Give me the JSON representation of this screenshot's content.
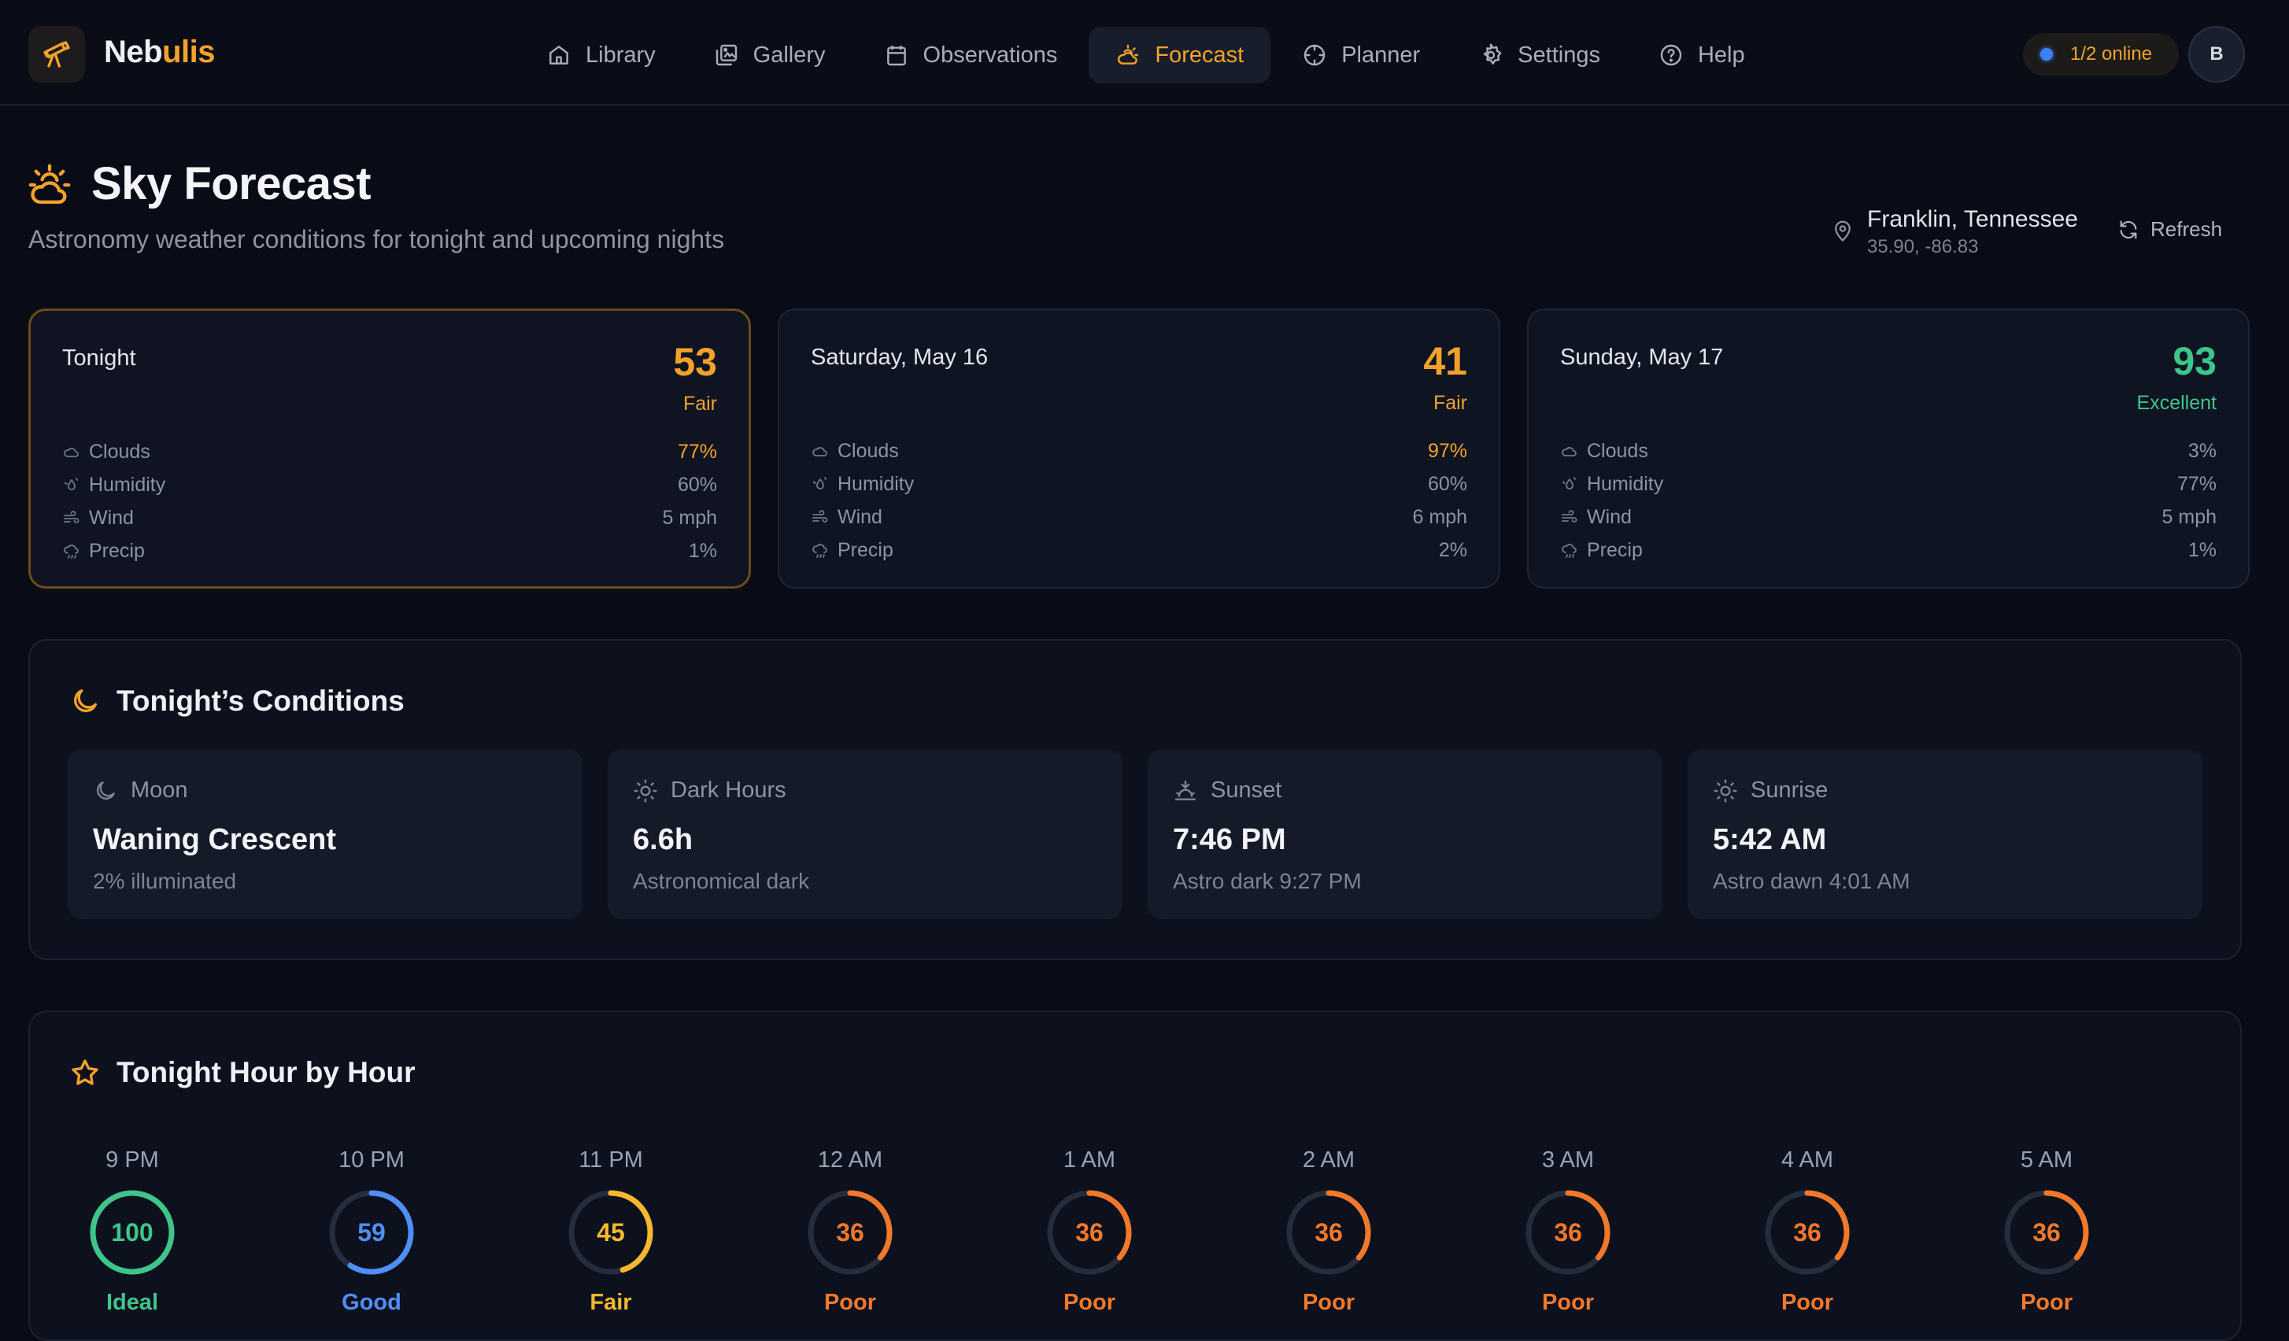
{
  "app": {
    "brand_a": "Neb",
    "brand_b": "ulis",
    "accent": "#f4a22c"
  },
  "nav": {
    "items": [
      {
        "label": "Library",
        "icon": "home-icon"
      },
      {
        "label": "Gallery",
        "icon": "gallery-icon"
      },
      {
        "label": "Observations",
        "icon": "calendar-icon"
      },
      {
        "label": "Forecast",
        "icon": "weather-icon",
        "active": true
      },
      {
        "label": "Planner",
        "icon": "crosshair-icon"
      },
      {
        "label": "Settings",
        "icon": "gear-icon"
      },
      {
        "label": "Help",
        "icon": "help-icon"
      }
    ],
    "online": "1/2 online",
    "avatar": "B"
  },
  "header": {
    "title": "Sky Forecast",
    "subtitle": "Astronomy weather conditions for tonight and upcoming nights",
    "location": "Franklin, Tennessee",
    "coords": "35.90, -86.83",
    "refresh": "Refresh"
  },
  "days": [
    {
      "name": "Tonight",
      "score": "53",
      "rating": "Fair",
      "color": "#f4a22c",
      "metrics": [
        {
          "label": "Clouds",
          "value": "77%",
          "warn": true
        },
        {
          "label": "Humidity",
          "value": "60%"
        },
        {
          "label": "Wind",
          "value": "5 mph"
        },
        {
          "label": "Precip",
          "value": "1%"
        }
      ]
    },
    {
      "name": "Saturday, May 16",
      "score": "41",
      "rating": "Fair",
      "color": "#f4a22c",
      "metrics": [
        {
          "label": "Clouds",
          "value": "97%",
          "warn": true
        },
        {
          "label": "Humidity",
          "value": "60%"
        },
        {
          "label": "Wind",
          "value": "6 mph"
        },
        {
          "label": "Precip",
          "value": "2%"
        }
      ]
    },
    {
      "name": "Sunday, May 17",
      "score": "93",
      "rating": "Excellent",
      "color": "#3ec58a",
      "metrics": [
        {
          "label": "Clouds",
          "value": "3%"
        },
        {
          "label": "Humidity",
          "value": "77%"
        },
        {
          "label": "Wind",
          "value": "5 mph"
        },
        {
          "label": "Precip",
          "value": "1%"
        }
      ]
    }
  ],
  "conditions": {
    "title": "Tonight’s Conditions",
    "cards": [
      {
        "label": "Moon",
        "value": "Waning Crescent",
        "detail": "2% illuminated",
        "icon": "moon-icon"
      },
      {
        "label": "Dark Hours",
        "value": "6.6h",
        "detail": "Astronomical dark",
        "icon": "sun-icon"
      },
      {
        "label": "Sunset",
        "value": "7:46 PM",
        "detail": "Astro dark 9:27 PM",
        "icon": "sunset-icon"
      },
      {
        "label": "Sunrise",
        "value": "5:42 AM",
        "detail": "Astro dawn 4:01 AM",
        "icon": "sunrise-icon"
      }
    ]
  },
  "hours": {
    "title": "Tonight Hour by Hour",
    "items": [
      {
        "time": "9 PM",
        "score": 100,
        "rating": "Ideal",
        "color": "#3ec58a"
      },
      {
        "time": "10 PM",
        "score": 59,
        "rating": "Good",
        "color": "#4f8ff7"
      },
      {
        "time": "11 PM",
        "score": 45,
        "rating": "Fair",
        "color": "#f5b82e"
      },
      {
        "time": "12 AM",
        "score": 36,
        "rating": "Poor",
        "color": "#f2782a"
      },
      {
        "time": "1 AM",
        "score": 36,
        "rating": "Poor",
        "color": "#f2782a"
      },
      {
        "time": "2 AM",
        "score": 36,
        "rating": "Poor",
        "color": "#f2782a"
      },
      {
        "time": "3 AM",
        "score": 36,
        "rating": "Poor",
        "color": "#f2782a"
      },
      {
        "time": "4 AM",
        "score": 36,
        "rating": "Poor",
        "color": "#f2782a"
      },
      {
        "time": "5 AM",
        "score": 36,
        "rating": "Poor",
        "color": "#f2782a"
      }
    ]
  }
}
